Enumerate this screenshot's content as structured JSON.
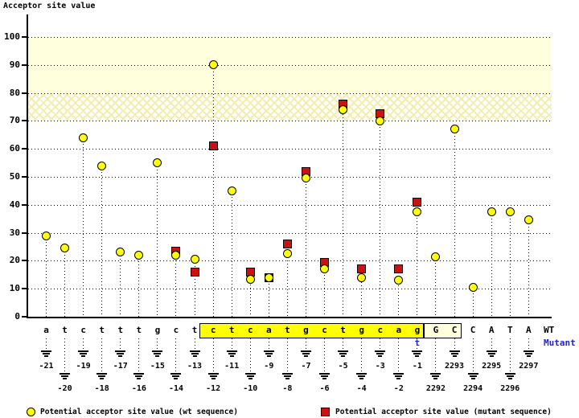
{
  "title": "Acceptor site value",
  "row_labels": {
    "wt": "WT",
    "mutant": "Mutant"
  },
  "legend": {
    "wt": "Potential acceptor site value (wt sequence)",
    "mutant": "Potential acceptor site value (mutant sequence)"
  },
  "colors": {
    "wt_marker": "#ffff0a",
    "mutant_marker": "#cc1111",
    "highlight_box": "#ffff00",
    "exon_box": "#ffffde",
    "shaded_band": "#ffffde",
    "mutant_text": "#2222cc"
  },
  "chart_data": {
    "type": "scatter",
    "title": "Acceptor site value",
    "ylabel": "Acceptor site value",
    "xlabel": "",
    "ylim": [
      0,
      100
    ],
    "yticks": [
      0,
      10,
      20,
      30,
      40,
      50,
      60,
      70,
      80,
      90,
      100
    ],
    "grid": "dotted-horizontal",
    "legend_position": "bottom",
    "highlight_bands": [
      {
        "y_range": [
          80,
          100
        ],
        "style": "solid",
        "color": "#ffffde"
      },
      {
        "y_range": [
          70,
          80
        ],
        "style": "crosshatch",
        "color": "#ffffde"
      }
    ],
    "series": [
      {
        "name": "Potential acceptor site value (wt sequence)",
        "marker": "circle",
        "color": "#ffff0a"
      },
      {
        "name": "Potential acceptor site value (mutant sequence)",
        "marker": "square",
        "color": "#cc1111"
      }
    ],
    "points": [
      {
        "position": "-21",
        "base": "a",
        "wt": 29,
        "mutant": null
      },
      {
        "position": "-20",
        "base": "t",
        "wt": 24.5,
        "mutant": null
      },
      {
        "position": "-19",
        "base": "c",
        "wt": 64,
        "mutant": null
      },
      {
        "position": "-18",
        "base": "t",
        "wt": 54,
        "mutant": null
      },
      {
        "position": "-17",
        "base": "t",
        "wt": 23,
        "mutant": null
      },
      {
        "position": "-16",
        "base": "t",
        "wt": 22,
        "mutant": null
      },
      {
        "position": "-15",
        "base": "g",
        "wt": 55,
        "mutant": null
      },
      {
        "position": "-14",
        "base": "c",
        "wt": 22,
        "mutant": 23.5
      },
      {
        "position": "-13",
        "base": "t",
        "wt": 20.5,
        "mutant": 16
      },
      {
        "position": "-12",
        "base": "c",
        "wt": 90,
        "mutant": 61,
        "box": "highlight"
      },
      {
        "position": "-11",
        "base": "t",
        "wt": 45,
        "mutant": null,
        "box": "highlight"
      },
      {
        "position": "-10",
        "base": "c",
        "wt": 13.5,
        "mutant": 16,
        "box": "highlight"
      },
      {
        "position": "-9",
        "base": "a",
        "wt": 14,
        "mutant": 14,
        "box": "highlight"
      },
      {
        "position": "-8",
        "base": "t",
        "wt": 22.5,
        "mutant": 26,
        "box": "highlight"
      },
      {
        "position": "-7",
        "base": "g",
        "wt": 49.5,
        "mutant": 52,
        "box": "highlight"
      },
      {
        "position": "-6",
        "base": "c",
        "wt": 17,
        "mutant": 19.5,
        "box": "highlight"
      },
      {
        "position": "-5",
        "base": "t",
        "wt": 74,
        "mutant": 76,
        "box": "highlight"
      },
      {
        "position": "-4",
        "base": "g",
        "wt": 14,
        "mutant": 17,
        "box": "highlight"
      },
      {
        "position": "-3",
        "base": "c",
        "wt": 70,
        "mutant": 72.5,
        "box": "highlight"
      },
      {
        "position": "-2",
        "base": "a",
        "wt": 13,
        "mutant": 17,
        "box": "highlight"
      },
      {
        "position": "-1",
        "base": "g",
        "wt": 37.5,
        "mutant": 41,
        "box": "highlight",
        "mutant_base": "t"
      },
      {
        "position": "2292",
        "base": "G",
        "wt": 21.5,
        "mutant": null,
        "box": "exon"
      },
      {
        "position": "2293",
        "base": "C",
        "wt": 67,
        "mutant": null,
        "box": "exon"
      },
      {
        "position": "2294",
        "base": "C",
        "wt": 10.5,
        "mutant": null
      },
      {
        "position": "2295",
        "base": "A",
        "wt": 37.5,
        "mutant": null
      },
      {
        "position": "2296",
        "base": "T",
        "wt": 37.5,
        "mutant": null
      },
      {
        "position": "2297",
        "base": "A",
        "wt": 34.5,
        "mutant": null
      }
    ]
  }
}
